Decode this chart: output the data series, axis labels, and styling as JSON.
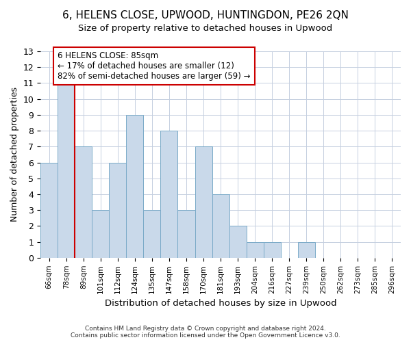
{
  "title1": "6, HELENS CLOSE, UPWOOD, HUNTINGDON, PE26 2QN",
  "title2": "Size of property relative to detached houses in Upwood",
  "xlabel": "Distribution of detached houses by size in Upwood",
  "ylabel": "Number of detached properties",
  "bar_labels": [
    "66sqm",
    "78sqm",
    "89sqm",
    "101sqm",
    "112sqm",
    "124sqm",
    "135sqm",
    "147sqm",
    "158sqm",
    "170sqm",
    "181sqm",
    "193sqm",
    "204sqm",
    "216sqm",
    "227sqm",
    "239sqm",
    "250sqm",
    "262sqm",
    "273sqm",
    "285sqm",
    "296sqm"
  ],
  "bar_values": [
    6,
    11,
    7,
    3,
    6,
    9,
    3,
    8,
    3,
    7,
    4,
    2,
    1,
    1,
    0,
    1,
    0,
    0,
    0,
    0,
    0
  ],
  "bar_color": "#c9d9ea",
  "bar_edgecolor": "#7aaac8",
  "grid_color": "#c5cfe0",
  "vline_color": "#cc0000",
  "annotation_line1": "6 HELENS CLOSE: 85sqm",
  "annotation_line2": "← 17% of detached houses are smaller (12)",
  "annotation_line3": "82% of semi-detached houses are larger (59) →",
  "annotation_box_facecolor": "#ffffff",
  "annotation_box_edgecolor": "#cc0000",
  "ylim": [
    0,
    13
  ],
  "yticks": [
    0,
    1,
    2,
    3,
    4,
    5,
    6,
    7,
    8,
    9,
    10,
    11,
    12,
    13
  ],
  "footer1": "Contains HM Land Registry data © Crown copyright and database right 2024.",
  "footer2": "Contains public sector information licensed under the Open Government Licence v3.0."
}
